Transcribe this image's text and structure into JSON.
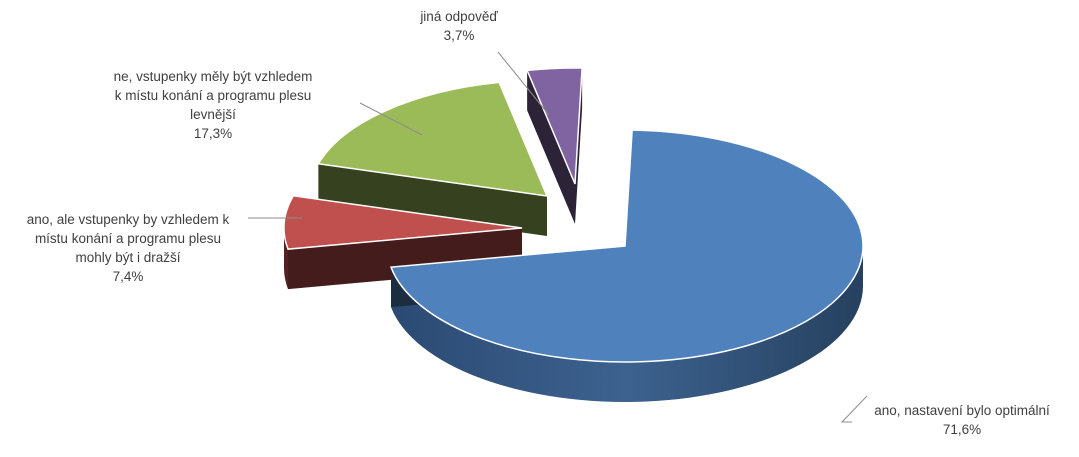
{
  "chart_data": {
    "type": "pie",
    "style": "3d-exploded",
    "title": "",
    "legend": "none",
    "unit": "%",
    "slices": [
      {
        "name": "ano, nastavení bylo optimální",
        "value": 71.6,
        "value_label": "71,6%",
        "color": "#4f81bd"
      },
      {
        "name": "ano, ale vstupenky by vzhledem k místu konání a programu plesu mohly být i dražší",
        "value": 7.4,
        "value_label": "7,4%",
        "color": "#c0504d"
      },
      {
        "name": "ne, vstupenky měly být vzhledem k místu konání a programu plesu levnější",
        "value": 17.3,
        "value_label": "17,3%",
        "color": "#9bbb59"
      },
      {
        "name": "jiná odpověď",
        "value": 3.7,
        "value_label": "3,7%",
        "color": "#8064a2"
      }
    ],
    "labels": [
      {
        "lines": [
          "ano, nastavení bylo optimální",
          "71,6%"
        ]
      },
      {
        "lines": [
          "ano, ale vstupenky by vzhledem k",
          "místu konání a programu plesu",
          "mohly být i dražší",
          "7,4%"
        ]
      },
      {
        "lines": [
          "ne, vstupenky měly být vzhledem",
          "k místu konání a programu plesu",
          "levnější",
          "17,3%"
        ]
      },
      {
        "lines": [
          "jiná odpověď",
          "3,7%"
        ]
      }
    ]
  }
}
